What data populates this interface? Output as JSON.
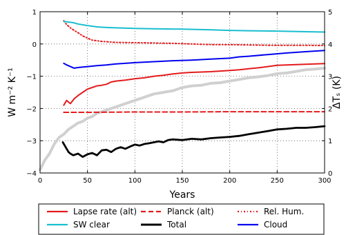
{
  "chart_data": {
    "type": "line",
    "xlabel": "Years",
    "ylabel_left": "W m⁻² K⁻¹",
    "ylabel_right": "ΔTₛ (K)",
    "xlim": [
      0,
      300
    ],
    "ylim_left": [
      -4,
      1
    ],
    "ylim_right": [
      0,
      5
    ],
    "grid": true,
    "grid_style": "dotted",
    "x_ticks": [
      0,
      50,
      100,
      150,
      200,
      250,
      300
    ],
    "y_ticks_left": [
      1,
      0,
      -1,
      -2,
      -3,
      -4
    ],
    "y_tick_labels_left": [
      "1",
      "0",
      "−1",
      "−2",
      "−3",
      "−4"
    ],
    "y_ticks_right": [
      0,
      1,
      2,
      3,
      4,
      5
    ],
    "legend_placement": "below",
    "series": [
      {
        "name": "Lapse rate (alt)",
        "color": "#e31a1c",
        "style": "solid",
        "axis": "left",
        "x": [
          25,
          28,
          32,
          36,
          40,
          45,
          50,
          55,
          60,
          65,
          70,
          75,
          80,
          90,
          100,
          110,
          120,
          130,
          140,
          150,
          160,
          170,
          180,
          190,
          200,
          210,
          220,
          230,
          240,
          250,
          260,
          270,
          280,
          290,
          300
        ],
        "values": [
          -1.9,
          -1.75,
          -1.85,
          -1.7,
          -1.6,
          -1.5,
          -1.4,
          -1.35,
          -1.3,
          -1.28,
          -1.25,
          -1.18,
          -1.15,
          -1.12,
          -1.08,
          -1.05,
          -1.0,
          -0.97,
          -0.93,
          -0.9,
          -0.88,
          -0.87,
          -0.86,
          -0.84,
          -0.82,
          -0.8,
          -0.77,
          -0.74,
          -0.7,
          -0.66,
          -0.65,
          -0.64,
          -0.63,
          -0.62,
          -0.61
        ]
      },
      {
        "name": "Planck (alt)",
        "color": "#e31a1c",
        "style": "dashed",
        "axis": "left",
        "x": [
          25,
          50,
          100,
          150,
          200,
          250,
          300
        ],
        "values": [
          -2.12,
          -2.12,
          -2.11,
          -2.11,
          -2.1,
          -2.1,
          -2.1
        ]
      },
      {
        "name": "Rel. Hum.",
        "color": "#e31a1c",
        "style": "dashdot",
        "axis": "left",
        "x": [
          25,
          28,
          32,
          36,
          40,
          45,
          50,
          55,
          60,
          65,
          70,
          80,
          100,
          120,
          140,
          160,
          180,
          200,
          220,
          240,
          260,
          280,
          300
        ],
        "values": [
          0.72,
          0.6,
          0.5,
          0.42,
          0.35,
          0.25,
          0.18,
          0.12,
          0.1,
          0.08,
          0.07,
          0.05,
          0.04,
          0.03,
          0.02,
          0.0,
          -0.02,
          -0.02,
          -0.03,
          -0.04,
          -0.04,
          -0.04,
          -0.05
        ]
      },
      {
        "name": "SW clear",
        "color": "#17becf",
        "style": "solid",
        "axis": "left",
        "x": [
          25,
          30,
          35,
          40,
          50,
          60,
          70,
          80,
          100,
          120,
          150,
          180,
          200,
          220,
          250,
          280,
          300
        ],
        "values": [
          0.7,
          0.68,
          0.66,
          0.62,
          0.57,
          0.53,
          0.51,
          0.5,
          0.48,
          0.47,
          0.46,
          0.44,
          0.42,
          0.41,
          0.4,
          0.38,
          0.37
        ]
      },
      {
        "name": "Total",
        "color": "#000000",
        "style": "solid",
        "axis": "left",
        "x": [
          24,
          27,
          30,
          32,
          35,
          40,
          45,
          50,
          55,
          60,
          65,
          70,
          75,
          80,
          85,
          90,
          95,
          100,
          105,
          110,
          115,
          120,
          125,
          130,
          135,
          140,
          150,
          160,
          170,
          180,
          190,
          200,
          210,
          220,
          230,
          240,
          250,
          260,
          270,
          280,
          290,
          300
        ],
        "values": [
          -3.05,
          -3.2,
          -3.35,
          -3.4,
          -3.45,
          -3.4,
          -3.5,
          -3.42,
          -3.38,
          -3.45,
          -3.3,
          -3.28,
          -3.35,
          -3.25,
          -3.2,
          -3.25,
          -3.18,
          -3.12,
          -3.15,
          -3.1,
          -3.08,
          -3.05,
          -3.02,
          -3.05,
          -2.98,
          -2.96,
          -2.98,
          -2.94,
          -2.96,
          -2.92,
          -2.9,
          -2.88,
          -2.85,
          -2.8,
          -2.75,
          -2.7,
          -2.65,
          -2.63,
          -2.6,
          -2.6,
          -2.58,
          -2.55
        ]
      },
      {
        "name": "Cloud",
        "color": "#0000ee",
        "style": "solid",
        "axis": "left",
        "x": [
          25,
          28,
          32,
          36,
          40,
          50,
          60,
          70,
          80,
          90,
          100,
          120,
          140,
          160,
          180,
          200,
          210,
          220,
          240,
          260,
          280,
          300
        ],
        "values": [
          -0.6,
          -0.65,
          -0.7,
          -0.75,
          -0.73,
          -0.7,
          -0.67,
          -0.65,
          -0.62,
          -0.6,
          -0.58,
          -0.55,
          -0.52,
          -0.5,
          -0.47,
          -0.44,
          -0.4,
          -0.38,
          -0.33,
          -0.28,
          -0.24,
          -0.2
        ]
      },
      {
        "name": "",
        "color": "#d0d0d0",
        "style": "solid",
        "axis": "right",
        "x": [
          0,
          5,
          10,
          15,
          20,
          25,
          30,
          35,
          40,
          45,
          50,
          55,
          60,
          65,
          70,
          75,
          80,
          85,
          90,
          95,
          100,
          110,
          120,
          130,
          140,
          150,
          160,
          170,
          180,
          190,
          200,
          210,
          220,
          230,
          240,
          250,
          260,
          270,
          280,
          290,
          300
        ],
        "values": [
          0.1,
          0.4,
          0.6,
          0.9,
          1.1,
          1.2,
          1.35,
          1.45,
          1.55,
          1.6,
          1.7,
          1.75,
          1.85,
          1.9,
          1.95,
          2.0,
          2.05,
          2.1,
          2.15,
          2.2,
          2.25,
          2.35,
          2.45,
          2.5,
          2.55,
          2.65,
          2.7,
          2.72,
          2.78,
          2.8,
          2.85,
          2.9,
          2.95,
          2.98,
          3.02,
          3.08,
          3.1,
          3.15,
          3.2,
          3.22,
          3.25
        ]
      }
    ],
    "legend": [
      [
        "Lapse rate (alt)",
        "Planck (alt)",
        "Rel. Hum."
      ],
      [
        "SW clear",
        "Total",
        "Cloud"
      ]
    ]
  }
}
